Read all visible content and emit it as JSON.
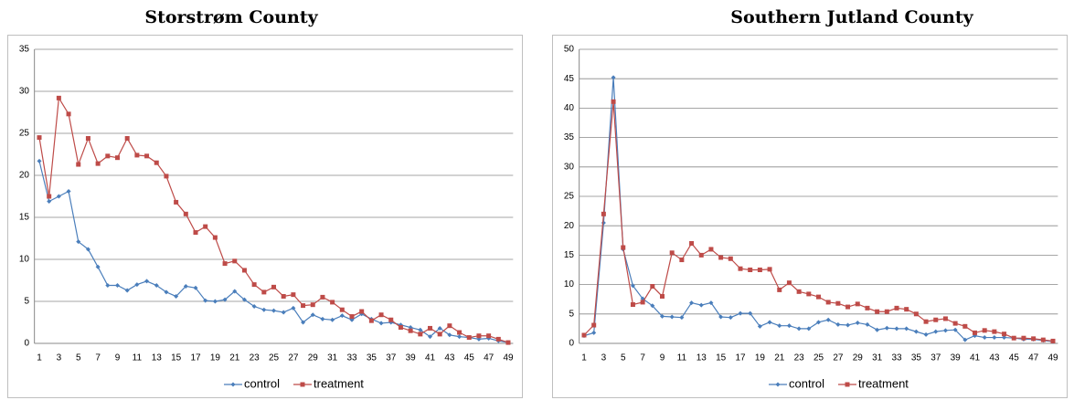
{
  "chart_data": [
    {
      "type": "line",
      "title": "Storstrøm County",
      "categories": [
        1,
        null,
        3,
        null,
        5,
        null,
        7,
        null,
        9,
        null,
        11,
        null,
        13,
        null,
        15,
        null,
        17,
        null,
        19,
        null,
        21,
        null,
        23,
        null,
        25,
        null,
        27,
        null,
        29,
        null,
        31,
        null,
        33,
        null,
        35,
        null,
        37,
        null,
        39,
        null,
        41,
        null,
        43,
        null,
        45,
        null,
        47,
        null,
        49
      ],
      "series": [
        {
          "name": "control",
          "color": "#4a7ebb",
          "values": [
            21.7,
            16.9,
            17.5,
            18.1,
            12.1,
            11.2,
            9.1,
            6.9,
            6.9,
            6.3,
            7.0,
            7.4,
            6.9,
            6.1,
            5.6,
            6.8,
            6.6,
            5.1,
            5.0,
            5.2,
            6.2,
            5.2,
            4.4,
            4.0,
            3.9,
            3.7,
            4.2,
            2.5,
            3.4,
            2.9,
            2.8,
            3.3,
            2.8,
            3.5,
            2.9,
            2.4,
            2.5,
            2.2,
            1.9,
            1.6,
            0.8,
            1.8,
            1.0,
            0.8,
            0.7,
            0.5,
            0.6,
            0.3,
            0.1
          ]
        },
        {
          "name": "treatment",
          "color": "#be4b48",
          "values": [
            24.5,
            17.5,
            29.2,
            27.3,
            21.3,
            24.4,
            21.4,
            22.3,
            22.1,
            24.4,
            22.4,
            22.3,
            21.5,
            19.9,
            16.8,
            15.4,
            13.2,
            13.9,
            12.6,
            9.5,
            9.8,
            8.7,
            7.0,
            6.1,
            6.7,
            5.6,
            5.8,
            4.5,
            4.6,
            5.5,
            4.9,
            4.0,
            3.2,
            3.8,
            2.7,
            3.4,
            2.8,
            1.9,
            1.5,
            1.1,
            1.8,
            1.1,
            2.1,
            1.3,
            0.7,
            0.9,
            0.9,
            0.5,
            0.1
          ]
        }
      ],
      "ylim": [
        0,
        35
      ],
      "yticks": [
        0,
        5,
        10,
        15,
        20,
        25,
        30,
        35
      ],
      "grid": true,
      "legend": "bottom"
    },
    {
      "type": "line",
      "title": "Southern Jutland County",
      "categories": [
        1,
        null,
        3,
        null,
        5,
        null,
        7,
        null,
        9,
        null,
        11,
        null,
        13,
        null,
        15,
        null,
        17,
        null,
        19,
        null,
        21,
        null,
        23,
        null,
        25,
        null,
        27,
        null,
        29,
        null,
        31,
        null,
        33,
        null,
        35,
        null,
        37,
        null,
        39,
        null,
        41,
        null,
        43,
        null,
        45,
        null,
        47,
        null,
        49
      ],
      "series": [
        {
          "name": "control",
          "color": "#4a7ebb",
          "values": [
            1.3,
            1.8,
            20.5,
            45.2,
            16.0,
            9.8,
            7.6,
            6.4,
            4.6,
            4.5,
            4.4,
            6.9,
            6.5,
            6.9,
            4.5,
            4.4,
            5.1,
            5.1,
            2.9,
            3.6,
            3.0,
            3.0,
            2.5,
            2.5,
            3.6,
            4.0,
            3.2,
            3.1,
            3.5,
            3.2,
            2.3,
            2.6,
            2.5,
            2.5,
            2.0,
            1.5,
            2.0,
            2.2,
            2.3,
            0.6,
            1.3,
            1.0,
            1.0,
            1.0,
            0.9,
            0.7,
            0.7,
            0.5,
            0.3
          ]
        },
        {
          "name": "treatment",
          "color": "#be4b48",
          "values": [
            1.4,
            3.1,
            22.0,
            41.1,
            16.3,
            6.6,
            7.0,
            9.7,
            8.0,
            15.4,
            14.2,
            17.0,
            15.0,
            16.0,
            14.6,
            14.4,
            12.7,
            12.5,
            12.5,
            12.6,
            9.1,
            10.3,
            8.8,
            8.4,
            7.9,
            7.0,
            6.8,
            6.2,
            6.7,
            6.0,
            5.4,
            5.4,
            6.0,
            5.8,
            5.0,
            3.7,
            4.0,
            4.2,
            3.4,
            2.9,
            1.8,
            2.2,
            2.0,
            1.6,
            0.9,
            0.9,
            0.8,
            0.6,
            0.4
          ]
        }
      ],
      "ylim": [
        0,
        50
      ],
      "yticks": [
        0,
        5,
        10,
        15,
        20,
        25,
        30,
        35,
        40,
        45,
        50
      ],
      "grid": true,
      "legend": "bottom"
    }
  ]
}
